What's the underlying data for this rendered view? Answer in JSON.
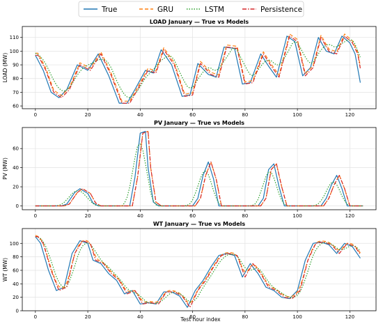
{
  "legend": [
    {
      "name": "True",
      "color": "#1f77b4",
      "dash": ""
    },
    {
      "name": "GRU",
      "color": "#ff7f0e",
      "dash": "5,3"
    },
    {
      "name": "LSTM",
      "color": "#2ca02c",
      "dash": "1.5,2"
    },
    {
      "name": "Persistence",
      "color": "#d62728",
      "dash": "6,2,1.5,2"
    }
  ],
  "xlabel": "Test hour index",
  "chart_data": [
    {
      "type": "line",
      "title": "LOAD January — True vs Models",
      "ylabel": "LOAD (MW)",
      "xlim": [
        -5,
        130
      ],
      "ylim": [
        58,
        118
      ],
      "xticks": [
        0,
        20,
        40,
        60,
        80,
        100,
        120
      ],
      "yticks": [
        60,
        70,
        80,
        90,
        100,
        110
      ],
      "grid": true,
      "x_true": [
        0,
        3,
        6,
        9,
        12,
        16,
        20,
        24,
        28,
        32,
        35,
        38,
        42,
        45,
        48,
        52,
        56,
        59,
        62,
        66,
        69,
        72,
        76,
        79,
        82,
        86,
        89,
        92,
        96,
        99,
        102,
        105,
        108,
        111,
        114,
        117,
        120,
        122,
        124
      ],
      "y_true": [
        97,
        86,
        70,
        66,
        72,
        90,
        86,
        98,
        82,
        62,
        62,
        72,
        86,
        84,
        101,
        90,
        67,
        68,
        91,
        83,
        81,
        103,
        102,
        76,
        77,
        98,
        89,
        81,
        111,
        107,
        82,
        88,
        110,
        100,
        98,
        111,
        106,
        98,
        77
      ],
      "series": [
        {
          "name": "True",
          "lag": 0,
          "offset": 0,
          "smooth": 0
        },
        {
          "name": "GRU",
          "lag": 1,
          "offset": 1.5,
          "smooth": 0
        },
        {
          "name": "LSTM",
          "lag": 2,
          "offset": 2,
          "smooth": 3
        },
        {
          "name": "Persistence",
          "lag": 1,
          "offset": 0,
          "smooth": 0
        }
      ]
    },
    {
      "type": "line",
      "title": "PV January — True vs Models",
      "ylabel": "PV (MW)",
      "xlim": [
        -5,
        130
      ],
      "ylim": [
        -4,
        82
      ],
      "xticks": [
        0,
        20,
        40,
        60,
        80,
        100,
        120
      ],
      "yticks": [
        0,
        20,
        40,
        60
      ],
      "grid": true,
      "x_true": [
        0,
        10,
        12,
        15,
        17,
        20,
        22,
        24,
        36,
        38,
        40,
        42,
        43,
        45,
        47,
        60,
        62,
        64,
        66,
        68,
        70,
        85,
        87,
        89,
        91,
        93,
        95,
        109,
        111,
        113,
        115,
        117,
        119,
        125
      ],
      "y_true": [
        0,
        0,
        2,
        14,
        18,
        13,
        3,
        0,
        0,
        30,
        76,
        78,
        40,
        4,
        0,
        0,
        8,
        32,
        46,
        28,
        0,
        0,
        8,
        38,
        44,
        20,
        0,
        0,
        8,
        22,
        32,
        18,
        0,
        0
      ],
      "series": [
        {
          "name": "True",
          "lag": 0,
          "offset": 0,
          "smooth": 0
        },
        {
          "name": "GRU",
          "lag": 1,
          "offset": 0,
          "smooth": 0
        },
        {
          "name": "LSTM",
          "lag": -1,
          "offset": 0,
          "smooth": 2
        },
        {
          "name": "Persistence",
          "lag": 1,
          "offset": 0,
          "smooth": 0
        }
      ]
    },
    {
      "type": "line",
      "title": "WT January — True vs Models",
      "ylabel": "WT (MW)",
      "xlim": [
        -5,
        130
      ],
      "ylim": [
        0,
        122
      ],
      "xticks": [
        0,
        20,
        40,
        60,
        80,
        100,
        120
      ],
      "yticks": [
        0,
        20,
        40,
        60,
        80,
        100
      ],
      "grid": true,
      "x_true": [
        0,
        2,
        5,
        8,
        11,
        14,
        17,
        20,
        22,
        25,
        28,
        31,
        34,
        37,
        40,
        43,
        46,
        49,
        52,
        55,
        58,
        61,
        64,
        67,
        70,
        73,
        76,
        79,
        82,
        85,
        88,
        91,
        94,
        97,
        100,
        103,
        106,
        109,
        112,
        115,
        118,
        121,
        124
      ],
      "y_true": [
        110,
        100,
        60,
        30,
        35,
        85,
        104,
        100,
        75,
        70,
        55,
        45,
        25,
        30,
        10,
        12,
        10,
        28,
        28,
        22,
        5,
        30,
        45,
        65,
        82,
        85,
        82,
        50,
        70,
        55,
        35,
        30,
        20,
        18,
        30,
        75,
        100,
        102,
        98,
        85,
        100,
        95,
        78
      ],
      "series": [
        {
          "name": "True",
          "lag": 0,
          "offset": 0,
          "smooth": 0
        },
        {
          "name": "GRU",
          "lag": 1,
          "offset": 2,
          "smooth": 1
        },
        {
          "name": "LSTM",
          "lag": 2,
          "offset": 0,
          "smooth": 2
        },
        {
          "name": "Persistence",
          "lag": 1,
          "offset": 0,
          "smooth": 0
        }
      ]
    }
  ]
}
